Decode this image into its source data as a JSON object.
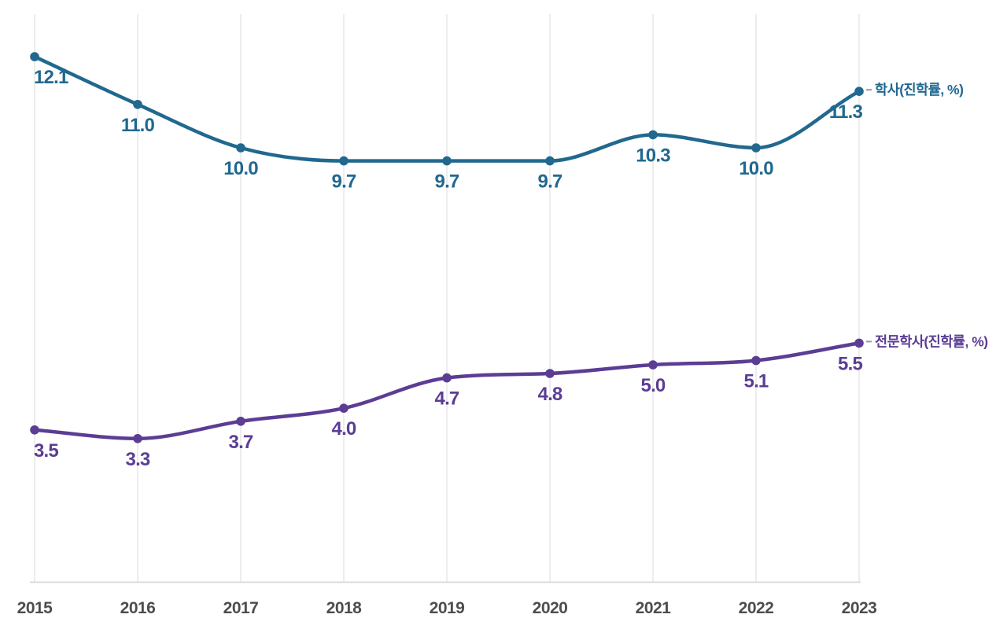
{
  "chart_data": {
    "type": "line",
    "title": "",
    "xlabel": "",
    "ylabel": "",
    "x": [
      2015,
      2016,
      2017,
      2018,
      2019,
      2020,
      2021,
      2022,
      2023
    ],
    "x_tick_labels": [
      "2015",
      "2016",
      "2017",
      "2018",
      "2019",
      "2020",
      "2021",
      "2022",
      "2023"
    ],
    "series": [
      {
        "name": "학사(진학률, %)",
        "values": [
          12.1,
          11.0,
          10.0,
          9.7,
          9.7,
          9.7,
          10.3,
          10.0,
          11.3
        ],
        "color": "#21688f"
      },
      {
        "name": "전문학사(진학률, %)",
        "values": [
          3.5,
          3.3,
          3.7,
          4.0,
          4.7,
          4.8,
          5.0,
          5.1,
          5.5
        ],
        "color": "#5b3d94"
      }
    ],
    "ylim": [
      0,
      13.1
    ],
    "grid": "vertical",
    "value_label_decimals": 1,
    "legend_position": "right-of-line-ends",
    "colors": {
      "background": "#ffffff",
      "gridline": "#ededed",
      "axis_line": "#dbdbdb",
      "tick_label": "#4d4d4d",
      "legend_dash": "#9a9a9a",
      "series_bachelor": "#21688f",
      "series_associate": "#5b3d94"
    }
  }
}
